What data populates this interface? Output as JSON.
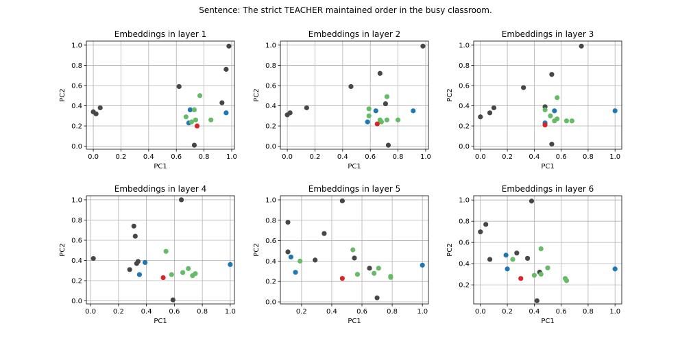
{
  "figure": {
    "suptitle": "Sentence: The strict TEACHER maintained order in the busy classroom."
  },
  "colors": {
    "other": "#474747",
    "target": "#d62728",
    "blue": "#1f77b4",
    "green": "#66bb66",
    "grid": "#b0b0b0"
  },
  "chart_data": [
    {
      "type": "scatter",
      "title": "Embeddings in layer 1",
      "xlabel": "PC1",
      "ylabel": "PC2",
      "xlim": [
        -0.05,
        1.02
      ],
      "ylim": [
        -0.03,
        1.04
      ],
      "xticks": [
        "0.0",
        "0.2",
        "0.4",
        "0.6",
        "0.8",
        "1.0"
      ],
      "yticks": [
        "0.0",
        "0.2",
        "0.4",
        "0.6",
        "0.8",
        "1.0"
      ],
      "grid": true,
      "points": [
        {
          "x": 0.0,
          "y": 0.34,
          "group": "other"
        },
        {
          "x": 0.02,
          "y": 0.32,
          "group": "other"
        },
        {
          "x": 0.05,
          "y": 0.38,
          "group": "other"
        },
        {
          "x": 0.62,
          "y": 0.59,
          "group": "other"
        },
        {
          "x": 0.73,
          "y": 0.01,
          "group": "other"
        },
        {
          "x": 0.93,
          "y": 0.43,
          "group": "other"
        },
        {
          "x": 0.96,
          "y": 0.76,
          "group": "other"
        },
        {
          "x": 0.98,
          "y": 0.99,
          "group": "other"
        },
        {
          "x": 0.69,
          "y": 0.23,
          "group": "blue"
        },
        {
          "x": 0.7,
          "y": 0.36,
          "group": "blue"
        },
        {
          "x": 0.96,
          "y": 0.33,
          "group": "blue"
        },
        {
          "x": 0.67,
          "y": 0.29,
          "group": "green"
        },
        {
          "x": 0.71,
          "y": 0.24,
          "group": "green"
        },
        {
          "x": 0.73,
          "y": 0.36,
          "group": "green"
        },
        {
          "x": 0.74,
          "y": 0.26,
          "group": "green"
        },
        {
          "x": 0.77,
          "y": 0.5,
          "group": "green"
        },
        {
          "x": 0.85,
          "y": 0.26,
          "group": "green"
        },
        {
          "x": 0.75,
          "y": 0.2,
          "group": "target"
        }
      ]
    },
    {
      "type": "scatter",
      "title": "Embeddings in layer 2",
      "xlabel": "PC1",
      "ylabel": "PC2",
      "xlim": [
        -0.05,
        1.02
      ],
      "ylim": [
        -0.03,
        1.04
      ],
      "xticks": [
        "0.0",
        "0.2",
        "0.4",
        "0.6",
        "0.8",
        "1.0"
      ],
      "yticks": [
        "0.0",
        "0.2",
        "0.4",
        "0.6",
        "0.8",
        "1.0"
      ],
      "grid": true,
      "points": [
        {
          "x": 0.0,
          "y": 0.31,
          "group": "other"
        },
        {
          "x": 0.02,
          "y": 0.33,
          "group": "other"
        },
        {
          "x": 0.14,
          "y": 0.38,
          "group": "other"
        },
        {
          "x": 0.46,
          "y": 0.59,
          "group": "other"
        },
        {
          "x": 0.67,
          "y": 0.72,
          "group": "other"
        },
        {
          "x": 0.71,
          "y": 0.42,
          "group": "other"
        },
        {
          "x": 0.73,
          "y": 0.01,
          "group": "other"
        },
        {
          "x": 0.98,
          "y": 0.99,
          "group": "other"
        },
        {
          "x": 0.58,
          "y": 0.24,
          "group": "blue"
        },
        {
          "x": 0.64,
          "y": 0.35,
          "group": "blue"
        },
        {
          "x": 0.91,
          "y": 0.35,
          "group": "blue"
        },
        {
          "x": 0.59,
          "y": 0.37,
          "group": "green"
        },
        {
          "x": 0.59,
          "y": 0.3,
          "group": "green"
        },
        {
          "x": 0.67,
          "y": 0.26,
          "group": "green"
        },
        {
          "x": 0.68,
          "y": 0.24,
          "group": "green"
        },
        {
          "x": 0.72,
          "y": 0.49,
          "group": "green"
        },
        {
          "x": 0.72,
          "y": 0.26,
          "group": "green"
        },
        {
          "x": 0.8,
          "y": 0.26,
          "group": "green"
        },
        {
          "x": 0.65,
          "y": 0.22,
          "group": "target"
        }
      ]
    },
    {
      "type": "scatter",
      "title": "Embeddings in layer 3",
      "xlabel": "PC1",
      "ylabel": "PC2",
      "xlim": [
        -0.05,
        1.05
      ],
      "ylim": [
        -0.03,
        1.04
      ],
      "xticks": [
        "0.0",
        "0.2",
        "0.4",
        "0.6",
        "0.8",
        "1.0"
      ],
      "yticks": [
        "0.0",
        "0.2",
        "0.4",
        "0.6",
        "0.8",
        "1.0"
      ],
      "grid": true,
      "points": [
        {
          "x": 0.0,
          "y": 0.29,
          "group": "other"
        },
        {
          "x": 0.07,
          "y": 0.33,
          "group": "other"
        },
        {
          "x": 0.1,
          "y": 0.38,
          "group": "other"
        },
        {
          "x": 0.32,
          "y": 0.58,
          "group": "other"
        },
        {
          "x": 0.48,
          "y": 0.39,
          "group": "other"
        },
        {
          "x": 0.53,
          "y": 0.71,
          "group": "other"
        },
        {
          "x": 0.53,
          "y": 0.02,
          "group": "other"
        },
        {
          "x": 0.75,
          "y": 0.99,
          "group": "other"
        },
        {
          "x": 0.48,
          "y": 0.23,
          "group": "blue"
        },
        {
          "x": 0.55,
          "y": 0.35,
          "group": "blue"
        },
        {
          "x": 1.0,
          "y": 0.35,
          "group": "blue"
        },
        {
          "x": 0.48,
          "y": 0.36,
          "group": "green"
        },
        {
          "x": 0.52,
          "y": 0.3,
          "group": "green"
        },
        {
          "x": 0.55,
          "y": 0.25,
          "group": "green"
        },
        {
          "x": 0.57,
          "y": 0.27,
          "group": "green"
        },
        {
          "x": 0.57,
          "y": 0.48,
          "group": "green"
        },
        {
          "x": 0.64,
          "y": 0.25,
          "group": "green"
        },
        {
          "x": 0.68,
          "y": 0.25,
          "group": "green"
        },
        {
          "x": 0.48,
          "y": 0.21,
          "group": "target"
        }
      ]
    },
    {
      "type": "scatter",
      "title": "Embeddings in layer 4",
      "xlabel": "PC1",
      "ylabel": "PC2",
      "xlim": [
        -0.03,
        1.03
      ],
      "ylim": [
        -0.03,
        1.04
      ],
      "xticks": [
        "0.0",
        "0.2",
        "0.4",
        "0.6",
        "0.8",
        "1.0"
      ],
      "yticks": [
        "0.0",
        "0.2",
        "0.4",
        "0.6",
        "0.8",
        "1.0"
      ],
      "grid": true,
      "points": [
        {
          "x": 0.02,
          "y": 0.42,
          "group": "other"
        },
        {
          "x": 0.28,
          "y": 0.31,
          "group": "other"
        },
        {
          "x": 0.31,
          "y": 0.74,
          "group": "other"
        },
        {
          "x": 0.32,
          "y": 0.64,
          "group": "other"
        },
        {
          "x": 0.33,
          "y": 0.37,
          "group": "other"
        },
        {
          "x": 0.34,
          "y": 0.39,
          "group": "other"
        },
        {
          "x": 0.59,
          "y": 0.01,
          "group": "other"
        },
        {
          "x": 0.65,
          "y": 1.0,
          "group": "other"
        },
        {
          "x": 0.35,
          "y": 0.26,
          "group": "blue"
        },
        {
          "x": 0.39,
          "y": 0.38,
          "group": "blue"
        },
        {
          "x": 1.0,
          "y": 0.36,
          "group": "blue"
        },
        {
          "x": 0.54,
          "y": 0.49,
          "group": "green"
        },
        {
          "x": 0.58,
          "y": 0.26,
          "group": "green"
        },
        {
          "x": 0.66,
          "y": 0.28,
          "group": "green"
        },
        {
          "x": 0.7,
          "y": 0.32,
          "group": "green"
        },
        {
          "x": 0.73,
          "y": 0.25,
          "group": "green"
        },
        {
          "x": 0.75,
          "y": 0.27,
          "group": "green"
        },
        {
          "x": 0.52,
          "y": 0.23,
          "group": "target"
        }
      ]
    },
    {
      "type": "scatter",
      "title": "Embeddings in layer 5",
      "xlabel": "PC1",
      "ylabel": "PC2",
      "xlim": [
        0.06,
        1.04
      ],
      "ylim": [
        -0.02,
        1.04
      ],
      "xticks": [
        "0.2",
        "0.4",
        "0.6",
        "0.8",
        "1.0"
      ],
      "yticks": [
        "0.0",
        "0.2",
        "0.4",
        "0.6",
        "0.8",
        "1.0"
      ],
      "grid": true,
      "points": [
        {
          "x": 0.11,
          "y": 0.78,
          "group": "other"
        },
        {
          "x": 0.11,
          "y": 0.49,
          "group": "other"
        },
        {
          "x": 0.29,
          "y": 0.41,
          "group": "other"
        },
        {
          "x": 0.35,
          "y": 0.67,
          "group": "other"
        },
        {
          "x": 0.47,
          "y": 0.99,
          "group": "other"
        },
        {
          "x": 0.55,
          "y": 0.43,
          "group": "other"
        },
        {
          "x": 0.65,
          "y": 0.33,
          "group": "other"
        },
        {
          "x": 0.7,
          "y": 0.04,
          "group": "other"
        },
        {
          "x": 0.13,
          "y": 0.44,
          "group": "blue"
        },
        {
          "x": 0.16,
          "y": 0.29,
          "group": "blue"
        },
        {
          "x": 1.0,
          "y": 0.36,
          "group": "blue"
        },
        {
          "x": 0.19,
          "y": 0.4,
          "group": "green"
        },
        {
          "x": 0.54,
          "y": 0.51,
          "group": "green"
        },
        {
          "x": 0.57,
          "y": 0.27,
          "group": "green"
        },
        {
          "x": 0.68,
          "y": 0.28,
          "group": "green"
        },
        {
          "x": 0.71,
          "y": 0.33,
          "group": "green"
        },
        {
          "x": 0.79,
          "y": 0.25,
          "group": "green"
        },
        {
          "x": 0.79,
          "y": 0.24,
          "group": "green"
        },
        {
          "x": 0.47,
          "y": 0.23,
          "group": "target"
        }
      ]
    },
    {
      "type": "scatter",
      "title": "Embeddings in layer 6",
      "xlabel": "PC1",
      "ylabel": "PC2",
      "xlim": [
        -0.05,
        1.05
      ],
      "ylim": [
        0.02,
        1.04
      ],
      "xticks": [
        "0.0",
        "0.2",
        "0.4",
        "0.6",
        "0.8",
        "1.0"
      ],
      "yticks": [
        "0.2",
        "0.4",
        "0.6",
        "0.8",
        "1.0"
      ],
      "grid": true,
      "points": [
        {
          "x": 0.0,
          "y": 0.7,
          "group": "other"
        },
        {
          "x": 0.04,
          "y": 0.77,
          "group": "other"
        },
        {
          "x": 0.07,
          "y": 0.44,
          "group": "other"
        },
        {
          "x": 0.27,
          "y": 0.5,
          "group": "other"
        },
        {
          "x": 0.35,
          "y": 0.45,
          "group": "other"
        },
        {
          "x": 0.38,
          "y": 0.99,
          "group": "other"
        },
        {
          "x": 0.44,
          "y": 0.32,
          "group": "other"
        },
        {
          "x": 0.42,
          "y": 0.05,
          "group": "other"
        },
        {
          "x": 0.19,
          "y": 0.48,
          "group": "blue"
        },
        {
          "x": 0.2,
          "y": 0.35,
          "group": "blue"
        },
        {
          "x": 1.0,
          "y": 0.35,
          "group": "blue"
        },
        {
          "x": 0.24,
          "y": 0.44,
          "group": "green"
        },
        {
          "x": 0.4,
          "y": 0.29,
          "group": "green"
        },
        {
          "x": 0.45,
          "y": 0.54,
          "group": "green"
        },
        {
          "x": 0.45,
          "y": 0.3,
          "group": "green"
        },
        {
          "x": 0.5,
          "y": 0.36,
          "group": "green"
        },
        {
          "x": 0.63,
          "y": 0.26,
          "group": "green"
        },
        {
          "x": 0.64,
          "y": 0.24,
          "group": "green"
        },
        {
          "x": 0.3,
          "y": 0.26,
          "group": "target"
        }
      ]
    }
  ]
}
